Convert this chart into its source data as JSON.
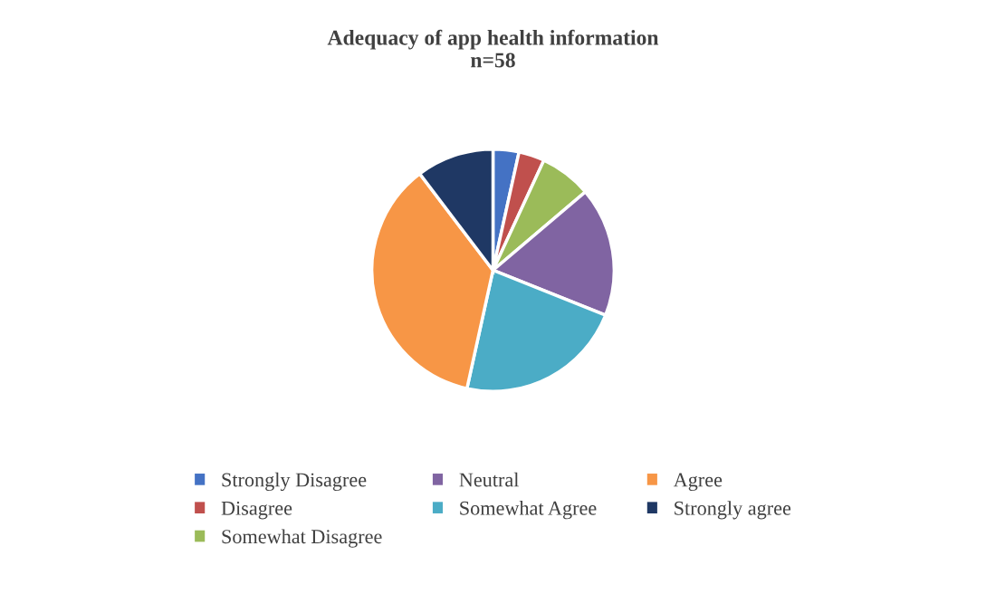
{
  "chart_data": {
    "type": "pie",
    "title": "Adequacy of app health information\nn=58",
    "categories": [
      "Strongly Disagree",
      "Disagree",
      "Somewhat Disagree",
      "Neutral",
      "Somewhat Agree",
      "Agree",
      "Strongly agree"
    ],
    "values": [
      3.45,
      3.45,
      6.9,
      17.24,
      22.41,
      36.21,
      10.34
    ],
    "colors": [
      "#4472c4",
      "#c0504d",
      "#9bbb59",
      "#8064a2",
      "#4bacc6",
      "#f79646",
      "#1f3864"
    ],
    "legend": "bottom"
  }
}
